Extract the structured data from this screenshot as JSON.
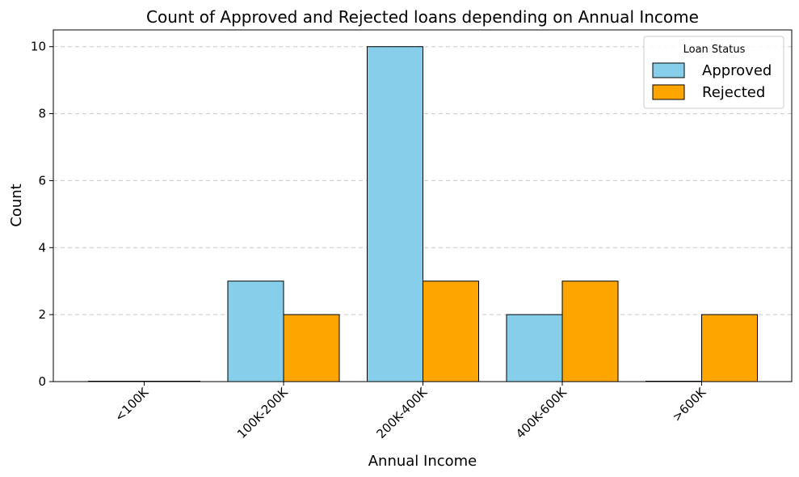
{
  "chart_data": {
    "type": "bar",
    "title": "Count of Approved and Rejected loans depending on Annual Income",
    "xlabel": "Annual Income",
    "ylabel": "Count",
    "categories": [
      "<100K",
      "100K-200K",
      "200K-400K",
      "400K-600K",
      ">600K"
    ],
    "series": [
      {
        "name": "Approved",
        "color": "#87CEEB",
        "values": [
          0,
          3,
          10,
          2,
          0
        ]
      },
      {
        "name": "Rejected",
        "color": "#FFA500",
        "values": [
          0,
          2,
          3,
          3,
          2
        ]
      }
    ],
    "ylim": [
      0,
      10.5
    ],
    "yticks": [
      0,
      2,
      4,
      6,
      8,
      10
    ],
    "grid": "y-dashed",
    "legend": {
      "title": "Loan Status",
      "position": "top-right"
    },
    "xtick_rotation": 45
  }
}
